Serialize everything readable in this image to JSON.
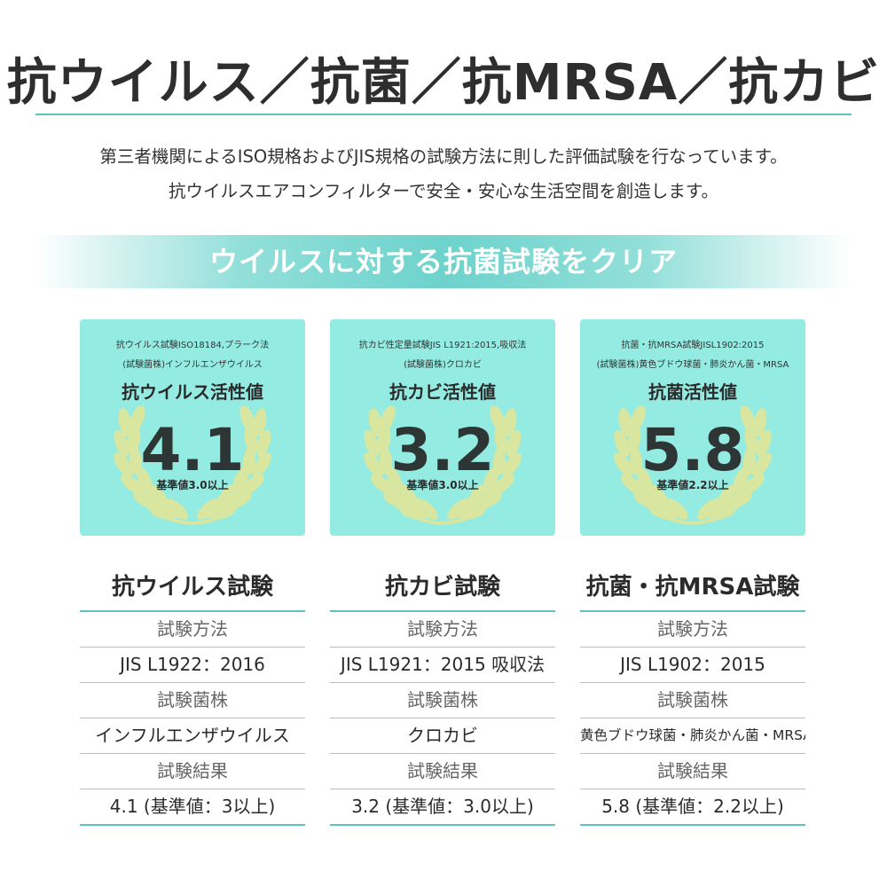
{
  "title": "抗ウイルス／抗菌／抗MRSA／抗カビ",
  "intro": {
    "line1": "第三者機関によるISO規格およびJIS規格の試験方法に則した評価試験を行なっています。",
    "line2": "抗ウイルスエアコンフィルターで安全・安心な生活空間を創造します。"
  },
  "banner": "ウイルスに対する抗菌試験をクリア",
  "colors": {
    "accent": "#5bc4be",
    "card": "#94ebe1",
    "laurel": "#d8e6a0"
  },
  "laurel_icon": "laurel-wreath-icon",
  "cards": [
    {
      "meta1": "抗ウイルス試験ISO18184,プラーク法",
      "meta2": "(試験菌株)インフルエンザウイルス",
      "metric": "抗ウイルス活性値",
      "value": "4.1",
      "standard": "基準値3.0以上"
    },
    {
      "meta1": "抗カビ性定量試験JIS L1921:2015,吸収法",
      "meta2": "(試験菌株)クロカビ",
      "metric": "抗カビ活性値",
      "value": "3.2",
      "standard": "基準値3.0以上"
    },
    {
      "meta1": "抗菌・抗MRSA試験JISL1902:2015",
      "meta2": "(試験菌株)黄色ブドウ球菌・肺炎かん菌・MRSA",
      "metric": "抗菌活性値",
      "value": "5.8",
      "standard": "基準値2.2以上"
    }
  ],
  "tables": [
    {
      "heading": "抗ウイルス試験",
      "method_label": "試験方法",
      "method": "JIS L1922：2016",
      "strain_label": "試験菌株",
      "strain": "インフルエンザウイルス",
      "result_label": "試験結果",
      "result": "4.1 (基準値：3以上)"
    },
    {
      "heading": "抗カビ試験",
      "method_label": "試験方法",
      "method": "JIS L1921：2015 吸収法",
      "strain_label": "試験菌株",
      "strain": "クロカビ",
      "result_label": "試験結果",
      "result": "3.2 (基準値：3.0以上)"
    },
    {
      "heading": "抗菌・抗MRSA試験",
      "method_label": "試験方法",
      "method": "JIS L1902：2015",
      "strain_label": "試験菌株",
      "strain": "黄色ブドウ球菌・肺炎かん菌・MRSA",
      "result_label": "試験結果",
      "result": "5.8 (基準値：2.2以上)"
    }
  ]
}
